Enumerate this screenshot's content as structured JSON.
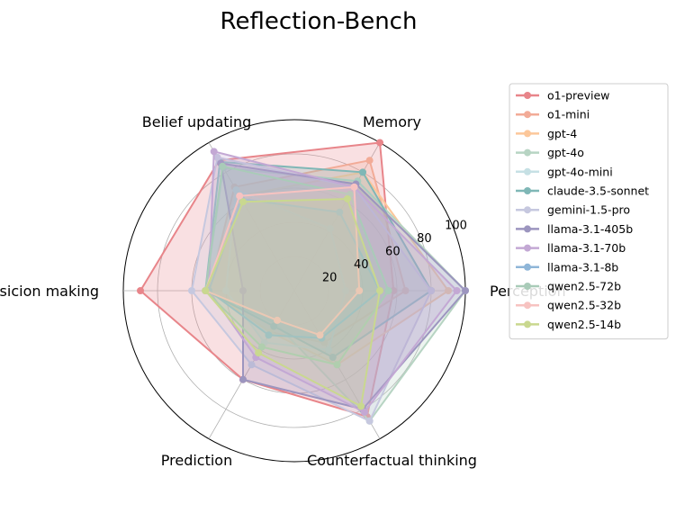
{
  "chart_data": {
    "type": "radar",
    "title": "Reflection-Bench",
    "axes": [
      "Perception",
      "Memory",
      "Belief updating",
      "Desicion making",
      "Prediction",
      "Counterfactual thinking"
    ],
    "rlim": [
      0,
      100
    ],
    "radial_ticks": [
      20,
      40,
      60,
      80,
      100
    ],
    "grid": true,
    "legend_position": "right",
    "series": [
      {
        "name": "o1-preview",
        "color": "#e8858a",
        "values": [
          58,
          100,
          88,
          90,
          60,
          85
        ]
      },
      {
        "name": "o1-mini",
        "color": "#f2ab97",
        "values": [
          65,
          88,
          70,
          50,
          28,
          35
        ]
      },
      {
        "name": "gpt-4",
        "color": "#fcc79a",
        "values": [
          90,
          80,
          64,
          50,
          28,
          50
        ]
      },
      {
        "name": "gpt-4o",
        "color": "#b7d4c3",
        "values": [
          100,
          74,
          83,
          52,
          22,
          88
        ]
      },
      {
        "name": "gpt-4o-mini",
        "color": "#c6e0e4",
        "values": [
          30,
          42,
          68,
          40,
          35,
          40
        ]
      },
      {
        "name": "claude-3.5-sonnet",
        "color": "#7fb7b6",
        "values": [
          80,
          80,
          87,
          52,
          24,
          45
        ]
      },
      {
        "name": "gemini-1.5-pro",
        "color": "#c6c8df",
        "values": [
          80,
          70,
          90,
          60,
          50,
          88
        ]
      },
      {
        "name": "llama-3.1-405b",
        "color": "#9c95bf",
        "values": [
          100,
          72,
          86,
          30,
          60,
          80
        ]
      },
      {
        "name": "llama-3.1-70b",
        "color": "#c3a8d4",
        "values": [
          95,
          70,
          94,
          50,
          45,
          82
        ]
      },
      {
        "name": "llama-3.1-8b",
        "color": "#8fb6d8",
        "values": [
          50,
          53,
          62,
          50,
          30,
          32
        ]
      },
      {
        "name": "qwen2.5-72b",
        "color": "#a9cbb8",
        "values": [
          55,
          65,
          84,
          52,
          38,
          50
        ]
      },
      {
        "name": "qwen2.5-32b",
        "color": "#f7c3c1",
        "values": [
          38,
          70,
          64,
          52,
          20,
          30
        ]
      },
      {
        "name": "qwen2.5-14b",
        "color": "#c9d88f",
        "values": [
          50,
          62,
          60,
          52,
          42,
          78
        ]
      }
    ]
  }
}
